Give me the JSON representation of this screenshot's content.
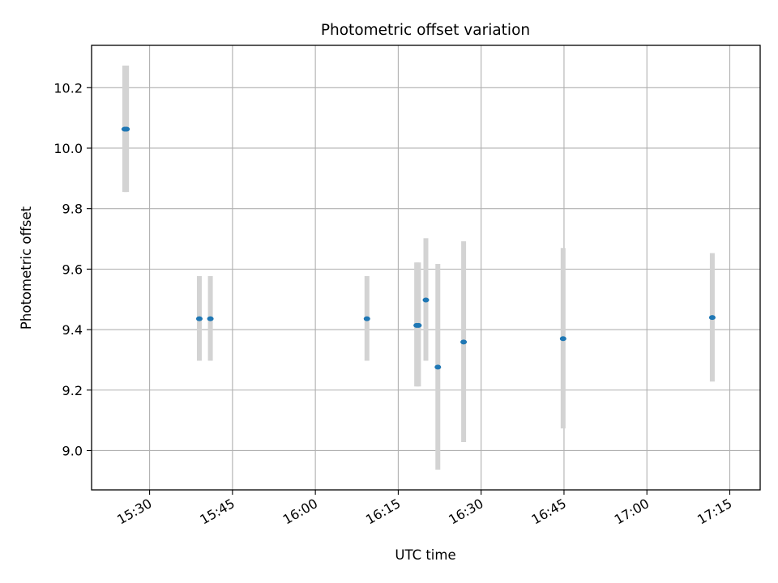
{
  "chart_data": {
    "type": "scatter",
    "title": "Photometric offset variation",
    "xlabel": "UTC time",
    "ylabel": "Photometric offset",
    "x_axis_kind": "time (HH:MM)",
    "xlim": [
      "15:19:30",
      "17:20:30"
    ],
    "ylim": [
      8.87,
      10.34
    ],
    "grid": true,
    "x_ticks": [
      "15:30",
      "15:45",
      "16:00",
      "16:15",
      "16:30",
      "16:45",
      "17:00",
      "17:15"
    ],
    "y_ticks": [
      "9.0",
      "9.2",
      "9.4",
      "9.6",
      "9.8",
      "10.0",
      "10.2"
    ],
    "colors": {
      "point": "#1f77b4",
      "errorbar": "#d3d3d3",
      "grid": "#b0b0b0",
      "axes": "#000000"
    },
    "points": [
      {
        "x": "15:25:30",
        "y": 10.063,
        "yerr_low": 9.855,
        "yerr_high": 10.273
      },
      {
        "x": "15:25:50",
        "y": 10.063,
        "yerr_low": 9.855,
        "yerr_high": 10.273
      },
      {
        "x": "15:39:00",
        "y": 9.436,
        "yerr_low": 9.297,
        "yerr_high": 9.577
      },
      {
        "x": "15:41:00",
        "y": 9.436,
        "yerr_low": 9.297,
        "yerr_high": 9.577
      },
      {
        "x": "16:09:20",
        "y": 9.436,
        "yerr_low": 9.297,
        "yerr_high": 9.577
      },
      {
        "x": "16:18:20",
        "y": 9.414,
        "yerr_low": 9.212,
        "yerr_high": 9.622
      },
      {
        "x": "16:18:40",
        "y": 9.414,
        "yerr_low": 9.212,
        "yerr_high": 9.622
      },
      {
        "x": "16:20:00",
        "y": 9.498,
        "yerr_low": 9.297,
        "yerr_high": 9.702
      },
      {
        "x": "16:22:10",
        "y": 9.276,
        "yerr_low": 8.937,
        "yerr_high": 9.617
      },
      {
        "x": "16:26:50",
        "y": 9.359,
        "yerr_low": 9.028,
        "yerr_high": 9.692
      },
      {
        "x": "16:44:50",
        "y": 9.37,
        "yerr_low": 9.073,
        "yerr_high": 9.67
      },
      {
        "x": "17:11:50",
        "y": 9.44,
        "yerr_low": 9.228,
        "yerr_high": 9.653
      }
    ]
  }
}
